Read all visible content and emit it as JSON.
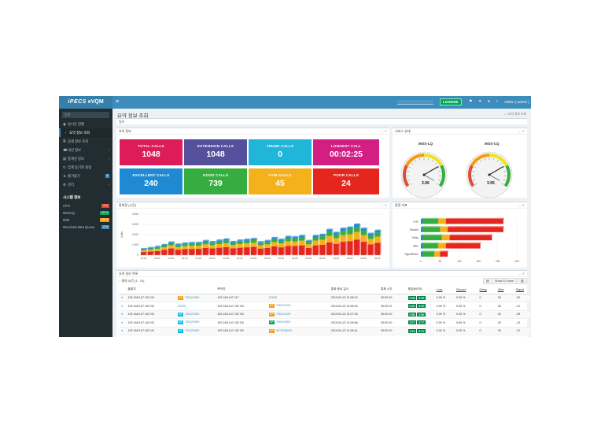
{
  "header": {
    "logo_brand": "iPECS",
    "logo_suffix": "eVQM",
    "menu_icon": "hamburger-icon",
    "license": "LICENSE",
    "admin": "Admin ( admin )"
  },
  "sidebar": {
    "search_placeholder": "검색",
    "items": [
      {
        "label": "실시간 현황",
        "icon": "dashboard-icon"
      },
      {
        "label": "요약 정보 조회",
        "icon": "chart-icon"
      },
      {
        "label": "상세 정보 조회",
        "icon": "list-icon"
      },
      {
        "label": "내선 정보",
        "icon": "phone-icon"
      },
      {
        "label": "통계선 정보",
        "icon": "stats-icon"
      },
      {
        "label": "임계 동기화 설정",
        "icon": "sync-icon"
      },
      {
        "label": "즐겨찾기",
        "icon": "star-icon",
        "badge": "5"
      },
      {
        "label": "관리",
        "icon": "gear-icon"
      }
    ],
    "system_title": "시스템 정보",
    "system": [
      {
        "label": "CPU",
        "value": "9 %",
        "color": "#dd4b39"
      },
      {
        "label": "Memory",
        "value": "62 %",
        "color": "#00a65a"
      },
      {
        "label": "Disk",
        "value": "28 %",
        "color": "#f39c12"
      },
      {
        "label": "Received data Queue",
        "value": "0 %",
        "color": "#3c8dbc"
      }
    ]
  },
  "page": {
    "title": "요약 정보 조회",
    "breadcrumb": "요약 정보 조회",
    "filter_label": "필터"
  },
  "summary": {
    "title": "요약 정보",
    "tiles": [
      {
        "label": "TOTAL CALLS",
        "value": "1048",
        "color": "#dd1c59"
      },
      {
        "label": "EXTENSION CALLS",
        "value": "1048",
        "color": "#55509b"
      },
      {
        "label": "TRUNK CALLS",
        "value": "0",
        "color": "#21b5da"
      },
      {
        "label": "LONGEST CALL",
        "value": "00:02:25",
        "color": "#d31f84"
      },
      {
        "label": "EXCELLENT CALLS",
        "value": "240",
        "color": "#1f8ad2"
      },
      {
        "label": "GOOD CALLS",
        "value": "739",
        "color": "#36ad3f"
      },
      {
        "label": "FAIR CALLS",
        "value": "45",
        "color": "#f4b11b"
      },
      {
        "label": "POOR CALLS",
        "value": "24",
        "color": "#e5261f"
      }
    ]
  },
  "service": {
    "title": "서비스 상태",
    "gauges": [
      {
        "label": "MOS-LQ",
        "value": "3.96",
        "reading": 3.96
      },
      {
        "label": "MOS-CQ",
        "value": "3.95",
        "reading": 3.95
      }
    ]
  },
  "bar_box": {
    "title": "통화량 (시간)",
    "ylabel": "Calls"
  },
  "quality_box": {
    "title": "품질 지표"
  },
  "list": {
    "title": "요약 정보 목록",
    "count_text": "결과 26건 (1 - 10)",
    "show_rows": "Show 10 rows",
    "columns": [
      "출발지",
      "",
      "목적지",
      "",
      "통화 종료 일시",
      "통화 시간",
      "품질(MOS)",
      "Loss",
      "Discard",
      "Delay",
      "Jitter",
      "Signal"
    ],
    "rows": [
      {
        "src": "192.168.147.102 N3",
        "tag1": "SIP",
        "tag1c": "#f39c12",
        "tel1": "730121986",
        "dst": "192.168.147.117",
        "tag2": "",
        "tag2c": "",
        "tel2": "22005",
        "end": "2019-04-22 11:08:12",
        "dur": "00:00:10",
        "m1": "3.95",
        "m2": "3.95",
        "loss": "0.00 %",
        "discard": "0.00 %",
        "delay": "0",
        "jitter": "39",
        "signal": "-20"
      },
      {
        "src": "192.168.147.102 N3",
        "tag1": "",
        "tag1c": "",
        "tel1": "22000",
        "dst": "192.168.147.102 N3",
        "tag2": "SIP",
        "tag2c": "#f39c12",
        "tel2": "730121929",
        "end": "2019-04-22 11:06:54",
        "dur": "00:00:12",
        "m1": "4.20",
        "m2": "4.20",
        "loss": "0.00 %",
        "discard": "0.00 %",
        "delay": "0",
        "jitter": "36",
        "signal": "-21"
      },
      {
        "src": "192.168.147.102 N3",
        "tag1": "SIP",
        "tag1c": "#00c0ef",
        "tel1": "730122000",
        "dst": "192.168.147.102 N3",
        "tag2": "SIP",
        "tag2c": "#f39c12",
        "tel2": "730121929",
        "end": "2019-04-22 11:07:26",
        "dur": "00:00:10",
        "m1": "3.86",
        "m2": "3.86",
        "loss": "0.00 %",
        "discard": "0.00 %",
        "delay": "0",
        "jitter": "30",
        "signal": "-39"
      },
      {
        "src": "192.168.147.102 N3",
        "tag1": "SIP",
        "tag1c": "#00c0ef",
        "tel1": "730122000",
        "dst": "192.168.147.102 N3",
        "tag2": "SIP",
        "tag2c": "#00a65a",
        "tel2": "749124800",
        "end": "2019-04-22 11:05:56",
        "dur": "00:00:10",
        "m1": "3.77",
        "m2": "3.77",
        "loss": "0.00 %",
        "discard": "0.00 %",
        "delay": "0",
        "jitter": "40",
        "signal": "-12"
      },
      {
        "src": "192.168.147.102 N3",
        "tag1": "SIP",
        "tag1c": "#00c0ef",
        "tel1": "730122000",
        "dst": "192.168.147.102 N3",
        "tag2": "SIP",
        "tag2c": "#f39c12",
        "tel2": "8270636632",
        "end": "2019-04-22 11:05:41",
        "dur": "00:00:10",
        "m1": "4.21",
        "m2": "4.21",
        "loss": "0.00 %",
        "discard": "0.00 %",
        "delay": "0",
        "jitter": "39",
        "signal": "-21"
      }
    ]
  },
  "chart_data": [
    {
      "type": "bar",
      "title": "",
      "ylabel": "Calls",
      "ylim": [
        0,
        4000
      ],
      "yticks": [
        "4,000",
        "3,000",
        "2,000",
        "1,000",
        "0"
      ],
      "xtick": "04-23",
      "stacked": true,
      "colors": [
        "#e5261f",
        "#f4b11b",
        "#36ad3f",
        "#1f8ad2"
      ],
      "categories_count": 35,
      "series": [
        {
          "values": [
            300,
            350,
            400,
            500,
            650,
            520,
            580,
            600,
            610,
            700,
            650,
            720,
            780,
            660,
            720,
            760,
            800,
            640,
            700,
            850,
            760,
            900,
            880,
            950,
            700,
            950,
            1000,
            1250,
            1100,
            1300,
            1350,
            1500,
            1300,
            1050,
            1200
          ]
        },
        {
          "values": [
            150,
            180,
            200,
            250,
            300,
            260,
            280,
            300,
            300,
            350,
            320,
            360,
            380,
            320,
            360,
            380,
            400,
            320,
            350,
            420,
            380,
            450,
            440,
            470,
            350,
            470,
            500,
            620,
            550,
            650,
            680,
            750,
            650,
            520,
            600
          ]
        },
        {
          "values": [
            100,
            120,
            140,
            160,
            200,
            170,
            190,
            200,
            200,
            230,
            210,
            240,
            250,
            210,
            240,
            250,
            260,
            210,
            230,
            280,
            250,
            300,
            290,
            310,
            230,
            310,
            330,
            410,
            360,
            430,
            450,
            500,
            430,
            350,
            400
          ]
        },
        {
          "values": [
            50,
            60,
            70,
            90,
            100,
            90,
            100,
            100,
            100,
            120,
            110,
            120,
            130,
            110,
            120,
            130,
            130,
            110,
            120,
            140,
            130,
            150,
            150,
            160,
            120,
            160,
            170,
            210,
            180,
            220,
            230,
            250,
            220,
            180,
            200
          ]
        }
      ]
    },
    {
      "type": "bar",
      "orientation": "horizontal",
      "stacked": true,
      "categories": [
        "Loss",
        "Discard",
        "Delay",
        "Jitter",
        "Signal/Echo"
      ],
      "xticks": [
        "0",
        "50",
        "100",
        "150",
        "200",
        "250"
      ],
      "xlim": [
        0,
        250
      ],
      "colors": [
        "#1f8ad2",
        "#36ad3f",
        "#f4b11b",
        "#e5261f"
      ],
      "series": [
        {
          "values": [
            5,
            5,
            5,
            5,
            5
          ]
        },
        {
          "values": [
            40,
            45,
            50,
            40,
            30
          ]
        },
        {
          "values": [
            20,
            20,
            20,
            20,
            15
          ]
        },
        {
          "values": [
            150,
            145,
            110,
            90,
            20
          ]
        }
      ]
    }
  ]
}
